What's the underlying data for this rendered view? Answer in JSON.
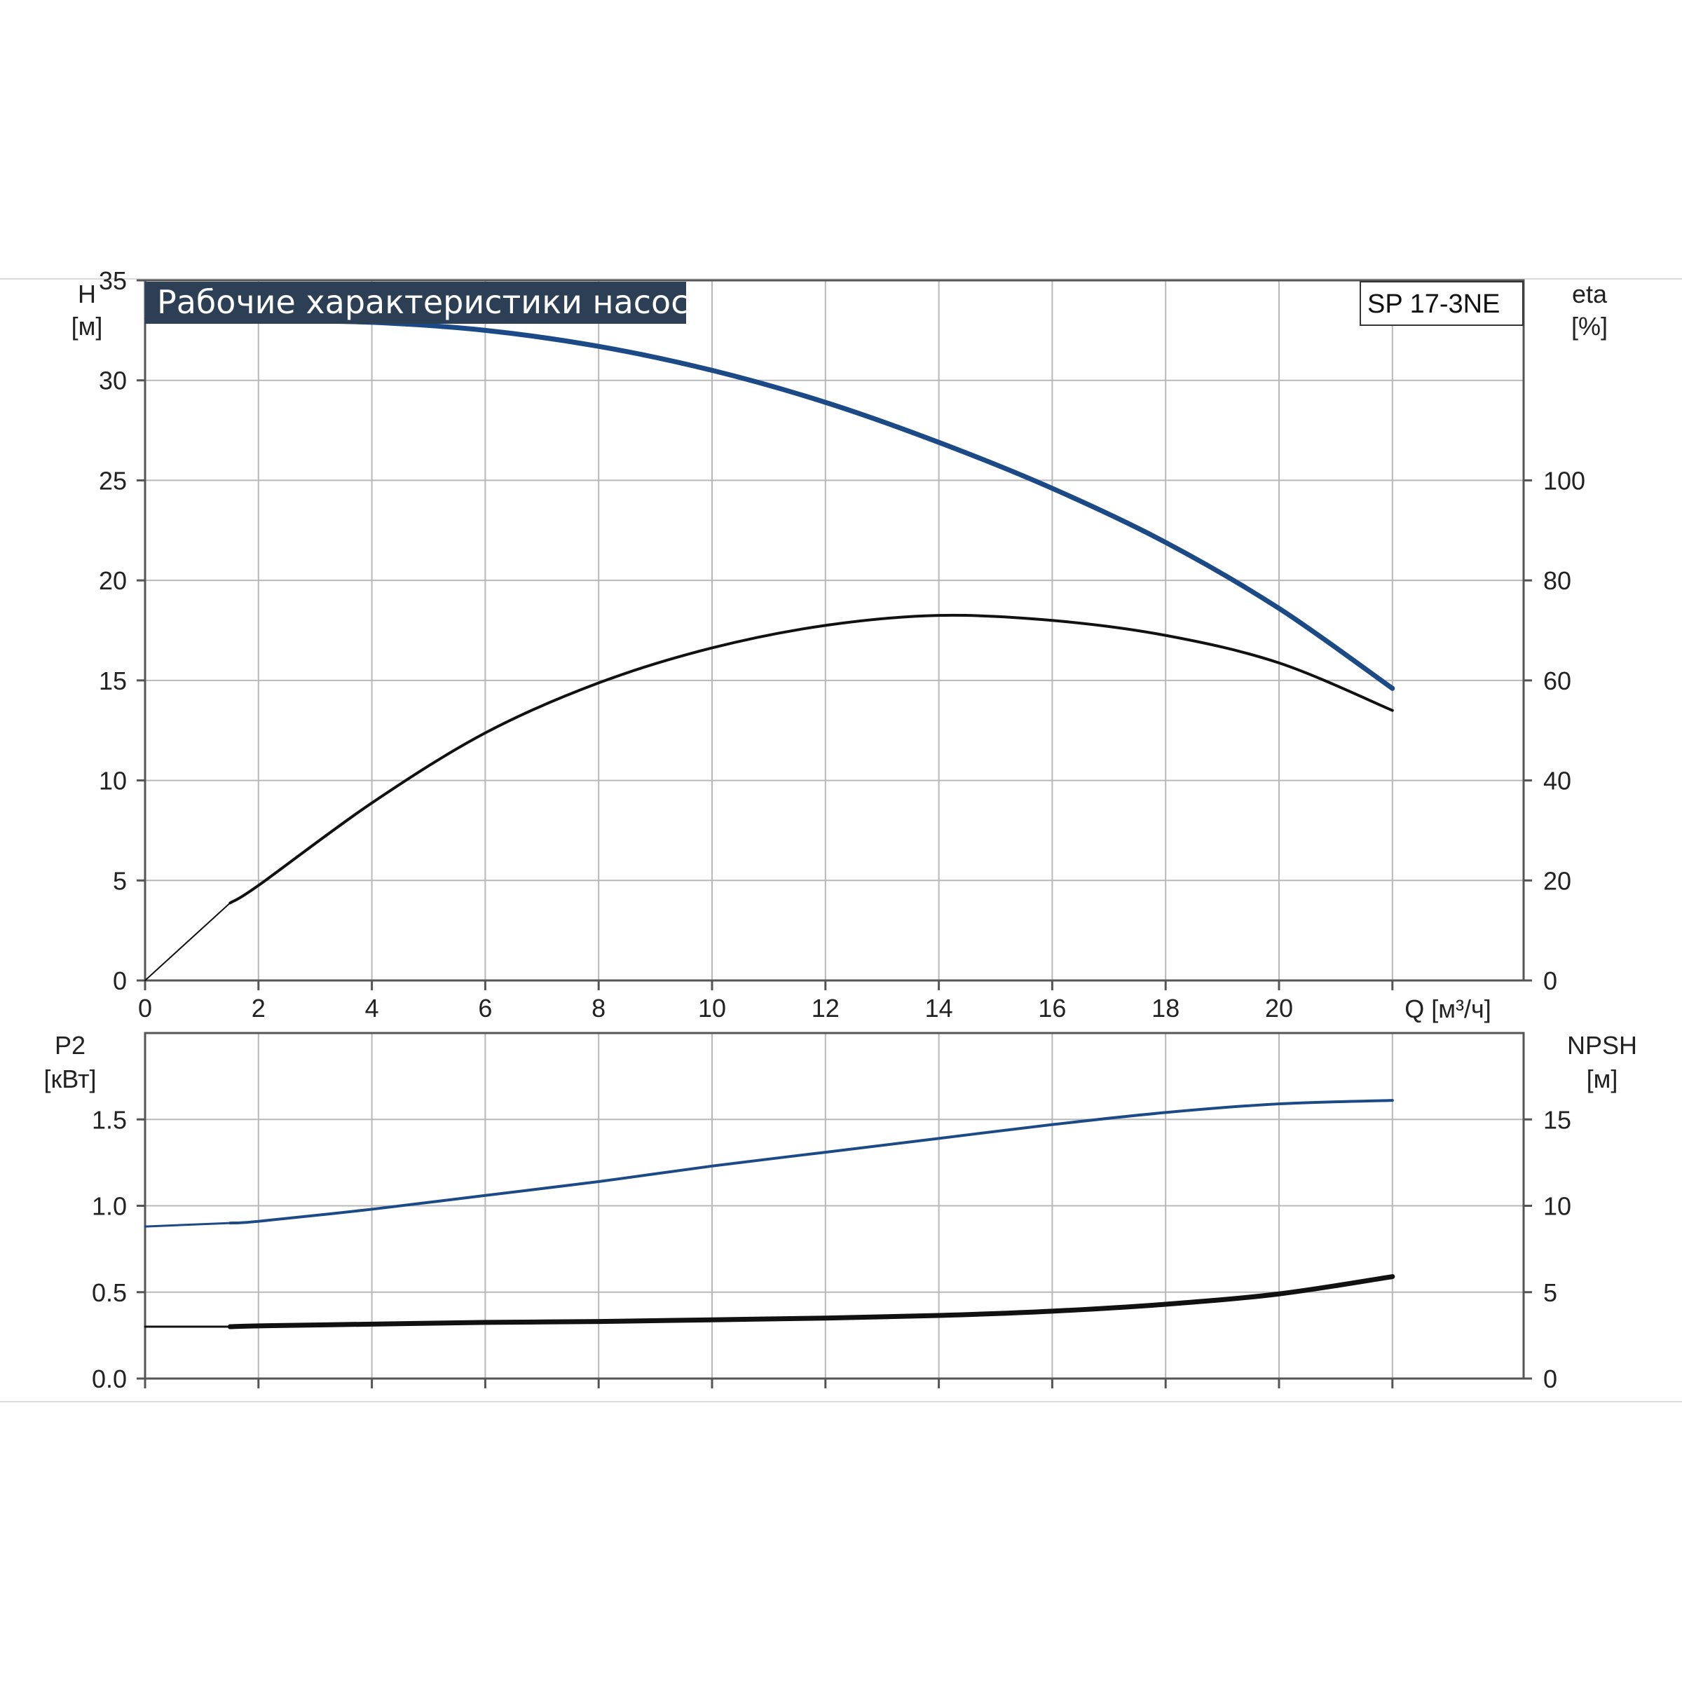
{
  "colors": {
    "head_curve": "#1c4a86",
    "eta_curve": "#111111",
    "p2_curve": "#1c4a86",
    "npsh_curve": "#111111",
    "banner_bg": "#2d3f55",
    "grid": "#b8b8b8"
  },
  "chart_data": [
    {
      "type": "line",
      "title": "Рабочие характеристики насоса",
      "model_label": "SP 17-3NE",
      "xlabel": "Q [м³/ч]",
      "xlim": [
        0,
        24
      ],
      "x_ticks": [
        0,
        2,
        4,
        6,
        8,
        10,
        12,
        14,
        16,
        18,
        20
      ],
      "x_tick_labels": [
        "0",
        "2",
        "4",
        "6",
        "8",
        "10",
        "12",
        "14",
        "16",
        "18",
        "20"
      ],
      "y_left": {
        "label_line1": "H",
        "label_line2": "[м]",
        "lim": [
          0,
          35
        ],
        "ticks": [
          0,
          5,
          10,
          15,
          20,
          25,
          30,
          35
        ],
        "tick_labels": [
          "0",
          "5",
          "10",
          "15",
          "20",
          "25",
          "30",
          "35"
        ]
      },
      "y_right": {
        "label_line1": "eta",
        "label_line2": "[%]",
        "lim": [
          0,
          140
        ],
        "ticks": [
          0,
          20,
          40,
          60,
          80,
          100
        ],
        "tick_labels": [
          "0",
          "20",
          "40",
          "60",
          "80",
          "100"
        ]
      },
      "grid": true,
      "series": [
        {
          "key": "H",
          "axis": "left",
          "x": [
            0,
            1.5,
            2,
            4,
            6,
            8,
            10,
            12,
            14,
            16,
            18,
            20,
            22
          ],
          "y": [
            33.1,
            33.0,
            33.0,
            32.9,
            32.5,
            31.7,
            30.5,
            28.9,
            26.9,
            24.6,
            21.9,
            18.6,
            14.6
          ]
        },
        {
          "key": "eta",
          "axis": "right",
          "x": [
            0,
            1.5,
            2,
            4,
            6,
            8,
            10,
            12,
            14,
            16,
            18,
            20,
            22
          ],
          "y": [
            0,
            15.5,
            19,
            35.5,
            49.5,
            59.5,
            66.5,
            71,
            73,
            72,
            69,
            63.5,
            54
          ]
        }
      ]
    },
    {
      "type": "line",
      "xlim": [
        0,
        24
      ],
      "x_ticks": [
        0,
        2,
        4,
        6,
        8,
        10,
        12,
        14,
        16,
        18,
        20
      ],
      "y_left": {
        "label_line1": "P2",
        "label_line2": "[кВт]",
        "lim": [
          0,
          2
        ],
        "ticks": [
          0,
          0.5,
          1.0,
          1.5
        ],
        "tick_labels": [
          "0.0",
          "0.5",
          "1.0",
          "1.5"
        ]
      },
      "y_right": {
        "label_line1": "NPSH",
        "label_line2": "[м]",
        "lim": [
          0,
          20
        ],
        "ticks": [
          0,
          5,
          10,
          15
        ],
        "tick_labels": [
          "0",
          "5",
          "10",
          "15"
        ]
      },
      "grid": true,
      "series": [
        {
          "key": "P2",
          "axis": "left",
          "x": [
            0,
            1.5,
            2,
            4,
            6,
            8,
            10,
            12,
            14,
            16,
            18,
            20,
            22
          ],
          "y": [
            0.88,
            0.9,
            0.91,
            0.98,
            1.06,
            1.14,
            1.23,
            1.31,
            1.39,
            1.47,
            1.54,
            1.59,
            1.61
          ]
        },
        {
          "key": "NPSH",
          "axis": "right",
          "x": [
            0,
            1.5,
            2,
            4,
            6,
            8,
            10,
            12,
            14,
            16,
            18,
            20,
            22
          ],
          "y": [
            3.0,
            3.0,
            3.05,
            3.15,
            3.25,
            3.3,
            3.4,
            3.5,
            3.65,
            3.9,
            4.3,
            4.9,
            5.9
          ]
        }
      ]
    }
  ]
}
